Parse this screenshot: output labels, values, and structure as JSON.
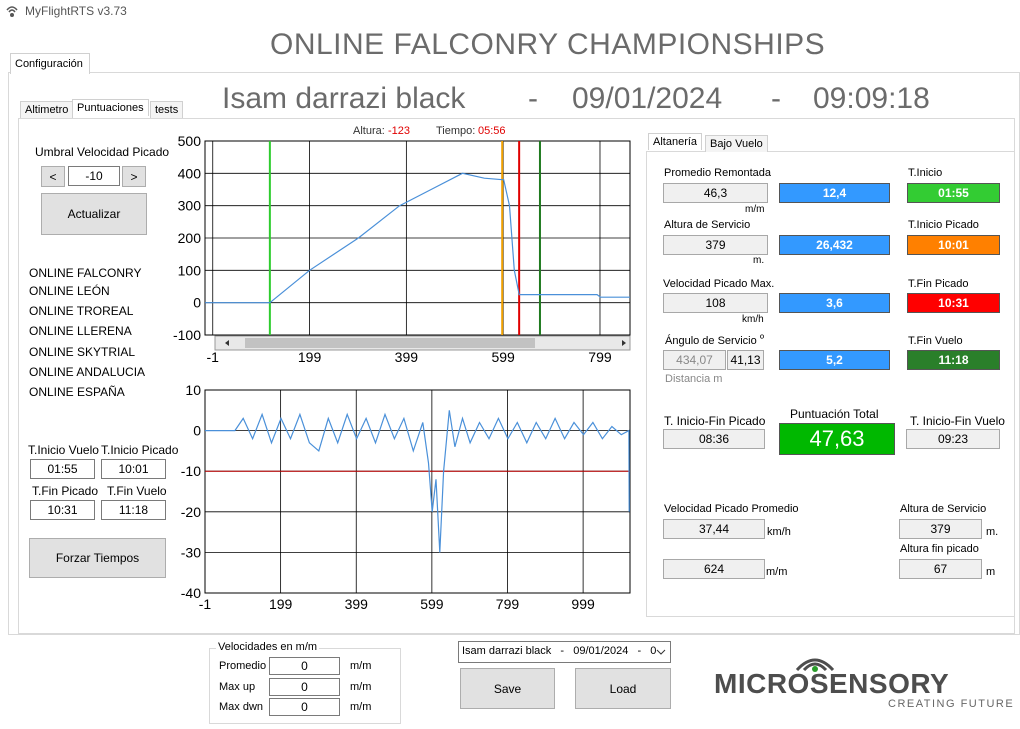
{
  "window": {
    "title": "MyFlightRTS v3.73"
  },
  "header": {
    "title": "ONLINE FALCONRY CHAMPIONSHIPS",
    "subtitle": [
      "Isam darrazi black",
      "-",
      "09/01/2024",
      "-",
      "09:09:18"
    ]
  },
  "tabs": {
    "main": [
      "Configuración"
    ],
    "left": [
      "Altimetro",
      "Puntuaciones",
      "tests"
    ],
    "right": [
      "Altanería",
      "Bajo Vuelo"
    ]
  },
  "left_panel": {
    "threshold_label": "Umbral Velocidad Picado",
    "decrement": "<",
    "threshold": "-10",
    "increment": ">",
    "update_button": "Actualizar",
    "clubs": [
      "ONLINE FALCONRY",
      "ONLINE LEÓN",
      "ONLINE TROREAL",
      "ONLINE LLERENA",
      "ONLINE SKYTRIAL",
      "ONLINE ANDALUCIA",
      "ONLINE ESPAÑA"
    ],
    "times": [
      {
        "label": "T.Inicio Vuelo",
        "value": "01:55"
      },
      {
        "label": "T.Inicio Picado",
        "value": "10:01"
      },
      {
        "label": "T.Fin Picado",
        "value": "10:31"
      },
      {
        "label": "T.Fin Vuelo",
        "value": "11:18"
      }
    ],
    "force_button": "Forzar Tiempos"
  },
  "chart_data": [
    {
      "type": "line",
      "readout": {
        "altitude_label": "Altura:",
        "altitude": "-123",
        "time_label": "Tiempo:",
        "time": "05:56"
      },
      "x": [
        -17,
        117,
        199,
        300,
        385,
        450,
        515,
        560,
        600,
        612,
        622,
        632,
        700,
        793,
        800,
        861
      ],
      "series": [
        {
          "color": "#4a90d9",
          "values": [
            0,
            0,
            100,
            200,
            300,
            350,
            400,
            385,
            380,
            300,
            100,
            25,
            25,
            25,
            17,
            17
          ]
        }
      ],
      "markers": [
        {
          "x": 117,
          "color": "#2ecc2e"
        },
        {
          "x": 597,
          "color": "#f0a000"
        },
        {
          "x": 632,
          "color": "#e00000"
        },
        {
          "x": 675,
          "color": "#1f7a1f"
        }
      ],
      "xlim": [
        -17,
        861
      ],
      "xticks": [
        -1,
        199,
        399,
        599,
        799
      ],
      "ylim": [
        -100,
        500
      ],
      "yticks": [
        -100,
        0,
        100,
        200,
        300,
        400,
        500
      ],
      "grid": true
    },
    {
      "type": "line",
      "x": [
        -1,
        78,
        100,
        125,
        150,
        175,
        200,
        225,
        250,
        275,
        300,
        325,
        350,
        375,
        400,
        425,
        450,
        475,
        500,
        525,
        550,
        575,
        590,
        600,
        610,
        620,
        630,
        645,
        660,
        680,
        700,
        725,
        750,
        775,
        800,
        825,
        850,
        875,
        900,
        925,
        950,
        975,
        1000,
        1025,
        1050,
        1075,
        1100,
        1120,
        1121
      ],
      "series": [
        {
          "color": "#4a90d9",
          "values": [
            0,
            0,
            3,
            -2,
            4,
            -3,
            3,
            -2,
            4,
            -3,
            -5,
            3,
            -3,
            4,
            -2,
            3,
            -3,
            4,
            -2,
            3,
            -5,
            2,
            -8,
            -20,
            -12,
            -30,
            -10,
            5,
            -4,
            3,
            -3,
            2,
            -2,
            3,
            -2,
            2,
            -3,
            2,
            -2,
            3,
            -2,
            2,
            -1,
            2,
            -2,
            1,
            -1,
            0,
            -20
          ]
        }
      ],
      "threshold": {
        "value": -10,
        "color": "#c00000"
      },
      "xlim": [
        -1,
        1123
      ],
      "xticks": [
        -1,
        199,
        399,
        599,
        799,
        999
      ],
      "ylim": [
        -40,
        10
      ],
      "yticks": [
        -40,
        -30,
        -20,
        -10,
        0,
        10
      ],
      "grid": true
    }
  ],
  "right_panel": {
    "climb_avg": {
      "label": "Promedio Remontada",
      "value": "46,3",
      "unit": "m/m",
      "score": "12,4"
    },
    "service_altitude": {
      "label": "Altura de Servicio",
      "value": "379",
      "unit": "m.",
      "score": "26,432"
    },
    "dive_speed_max": {
      "label": "Velocidad Picado Max.",
      "value": "108",
      "unit": "km/h",
      "score": "3,6"
    },
    "service_angle": {
      "label": "Ángulo de Servicio",
      "symbol": "º",
      "distance": "434,07",
      "value": "41,13",
      "distance_label": "Distancia m",
      "score": "5,2"
    },
    "times": [
      {
        "label": "T.Inicio",
        "value": "01:55"
      },
      {
        "label": "T.Inicio Picado",
        "value": "10:01"
      },
      {
        "label": "T.Fin Picado",
        "value": "10:31"
      },
      {
        "label": "T.Fin Vuelo",
        "value": "11:18"
      }
    ],
    "dive_duration": {
      "label": "T. Inicio-Fin Picado",
      "value": "08:36"
    },
    "total": {
      "label": "Puntuación Total",
      "value": "47,63"
    },
    "flight_duration": {
      "label": "T. Inicio-Fin Vuelo",
      "value": "09:23"
    },
    "dive_speed_avg": {
      "label": "Velocidad Picado Promedio",
      "value": "37,44",
      "unit": "km/h"
    },
    "climb_speed": {
      "value": "624",
      "unit": "m/m"
    },
    "service_altitude_2": {
      "label": "Altura de Servicio",
      "value": "379",
      "unit": "m."
    },
    "end_altitude": {
      "label": "Altura fin picado",
      "value": "67",
      "unit": "m"
    }
  },
  "bottom": {
    "speeds": {
      "title": "Velocidades en m/m",
      "rows": [
        {
          "label": "Promedio",
          "value": "0",
          "unit": "m/m"
        },
        {
          "label": "Max up",
          "value": "0",
          "unit": "m/m"
        },
        {
          "label": "Max dwn",
          "value": "0",
          "unit": "m/m"
        }
      ]
    },
    "session": "Isam darrazi black   -   09/01/2024   -   0",
    "save": "Save",
    "load": "Load"
  },
  "logo": {
    "name": "MICROSENSORY",
    "tagline": "CREATING FUTURE"
  }
}
